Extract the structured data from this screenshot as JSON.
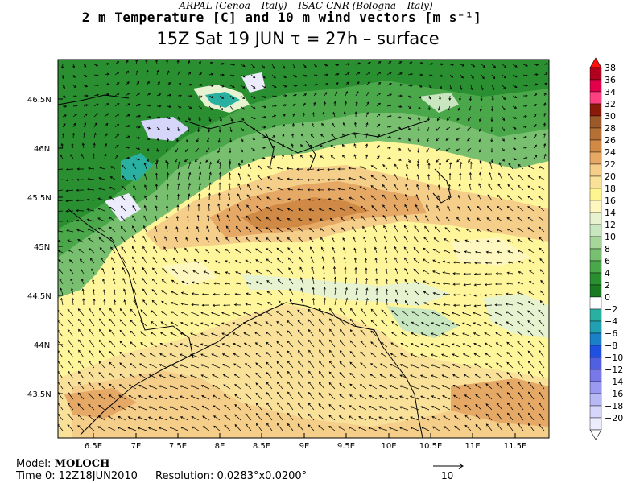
{
  "header": {
    "line1": "ARPAL (Genoa – Italy)  –  ISAC-CNR (Bologna – Italy)",
    "line2": "2 m Temperature [C] and 10 m wind vectors [m s⁻¹]",
    "line3": "15Z Sat 19 JUN  τ = 27h  –  surface"
  },
  "map": {
    "lat_labels": [
      "46.5N",
      "46N",
      "45.5N",
      "45N",
      "44.5N",
      "44N",
      "43.5N"
    ],
    "lon_labels": [
      "6.5E",
      "7E",
      "7.5E",
      "8E",
      "8.5E",
      "9E",
      "9.5E",
      "10E",
      "10.5E",
      "11E",
      "11.5E"
    ]
  },
  "colorbar": {
    "labels": [
      "38",
      "36",
      "34",
      "32",
      "30",
      "28",
      "26",
      "24",
      "22",
      "20",
      "18",
      "16",
      "14",
      "12",
      "10",
      "8",
      "6",
      "4",
      "2",
      "0",
      "−2",
      "−4",
      "−6",
      "−8",
      "−10",
      "−12",
      "−14",
      "−16",
      "−18",
      "−20"
    ],
    "colors": [
      "#b2001f",
      "#e3004a",
      "#ff3f7f",
      "#8b1a0a",
      "#9c5a2a",
      "#b57035",
      "#d08a45",
      "#e5a865",
      "#f5cf8a",
      "#f9e19a",
      "#fff590",
      "#fff7c0",
      "#e6f2d0",
      "#c8e6c0",
      "#a6d69a",
      "#78c070",
      "#4aa84a",
      "#2a8f30",
      "#1a7a22",
      "#ffffff",
      "#2ab0a0",
      "#20a0b0",
      "#1a80c8",
      "#2050e0",
      "#5060e0",
      "#7878e8",
      "#9a9af0",
      "#b8b8f5",
      "#d6d6fa",
      "#ececfd"
    ]
  },
  "footer": {
    "model_label": "Model:",
    "model_value": "MOLOCH",
    "time_label": "Time 0:",
    "time_value": "12Z18JUN2010",
    "res_label": "Resolution:",
    "res_value": "0.0283°x0.0200°",
    "ref_value": "10"
  }
}
